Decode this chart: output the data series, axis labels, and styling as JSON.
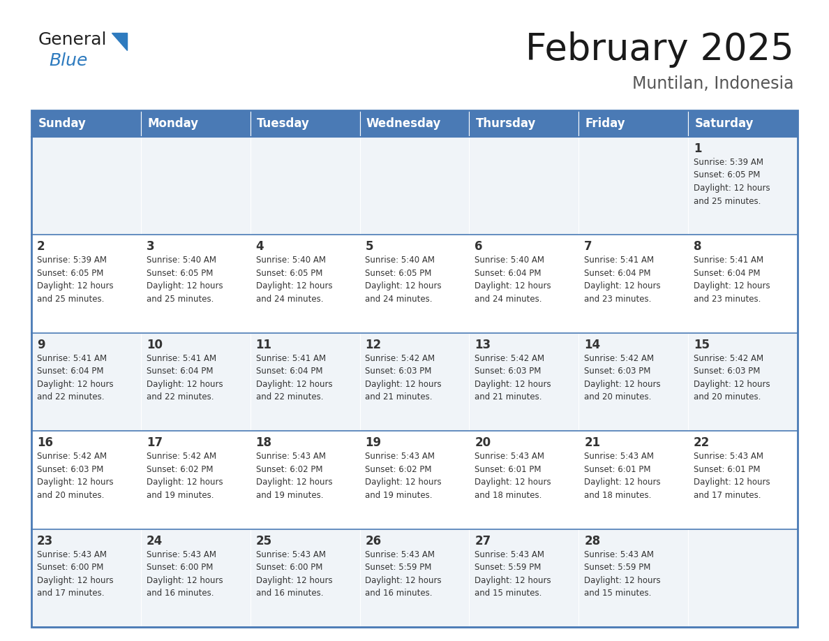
{
  "title": "February 2025",
  "subtitle": "Muntilan, Indonesia",
  "header_bg": "#4a7ab5",
  "header_text_color": "#ffffff",
  "days_of_week": [
    "Sunday",
    "Monday",
    "Tuesday",
    "Wednesday",
    "Thursday",
    "Friday",
    "Saturday"
  ],
  "row_bg_light": "#f0f4f8",
  "row_bg_white": "#ffffff",
  "cell_border_color": "#4a7ab5",
  "day_number_color": "#333333",
  "info_text_color": "#333333",
  "calendar": [
    [
      null,
      null,
      null,
      null,
      null,
      null,
      {
        "day": 1,
        "sunrise": "5:39 AM",
        "sunset": "6:05 PM",
        "daylight": "12 hours\nand 25 minutes."
      }
    ],
    [
      {
        "day": 2,
        "sunrise": "5:39 AM",
        "sunset": "6:05 PM",
        "daylight": "12 hours\nand 25 minutes."
      },
      {
        "day": 3,
        "sunrise": "5:40 AM",
        "sunset": "6:05 PM",
        "daylight": "12 hours\nand 25 minutes."
      },
      {
        "day": 4,
        "sunrise": "5:40 AM",
        "sunset": "6:05 PM",
        "daylight": "12 hours\nand 24 minutes."
      },
      {
        "day": 5,
        "sunrise": "5:40 AM",
        "sunset": "6:05 PM",
        "daylight": "12 hours\nand 24 minutes."
      },
      {
        "day": 6,
        "sunrise": "5:40 AM",
        "sunset": "6:04 PM",
        "daylight": "12 hours\nand 24 minutes."
      },
      {
        "day": 7,
        "sunrise": "5:41 AM",
        "sunset": "6:04 PM",
        "daylight": "12 hours\nand 23 minutes."
      },
      {
        "day": 8,
        "sunrise": "5:41 AM",
        "sunset": "6:04 PM",
        "daylight": "12 hours\nand 23 minutes."
      }
    ],
    [
      {
        "day": 9,
        "sunrise": "5:41 AM",
        "sunset": "6:04 PM",
        "daylight": "12 hours\nand 22 minutes."
      },
      {
        "day": 10,
        "sunrise": "5:41 AM",
        "sunset": "6:04 PM",
        "daylight": "12 hours\nand 22 minutes."
      },
      {
        "day": 11,
        "sunrise": "5:41 AM",
        "sunset": "6:04 PM",
        "daylight": "12 hours\nand 22 minutes."
      },
      {
        "day": 12,
        "sunrise": "5:42 AM",
        "sunset": "6:03 PM",
        "daylight": "12 hours\nand 21 minutes."
      },
      {
        "day": 13,
        "sunrise": "5:42 AM",
        "sunset": "6:03 PM",
        "daylight": "12 hours\nand 21 minutes."
      },
      {
        "day": 14,
        "sunrise": "5:42 AM",
        "sunset": "6:03 PM",
        "daylight": "12 hours\nand 20 minutes."
      },
      {
        "day": 15,
        "sunrise": "5:42 AM",
        "sunset": "6:03 PM",
        "daylight": "12 hours\nand 20 minutes."
      }
    ],
    [
      {
        "day": 16,
        "sunrise": "5:42 AM",
        "sunset": "6:03 PM",
        "daylight": "12 hours\nand 20 minutes."
      },
      {
        "day": 17,
        "sunrise": "5:42 AM",
        "sunset": "6:02 PM",
        "daylight": "12 hours\nand 19 minutes."
      },
      {
        "day": 18,
        "sunrise": "5:43 AM",
        "sunset": "6:02 PM",
        "daylight": "12 hours\nand 19 minutes."
      },
      {
        "day": 19,
        "sunrise": "5:43 AM",
        "sunset": "6:02 PM",
        "daylight": "12 hours\nand 19 minutes."
      },
      {
        "day": 20,
        "sunrise": "5:43 AM",
        "sunset": "6:01 PM",
        "daylight": "12 hours\nand 18 minutes."
      },
      {
        "day": 21,
        "sunrise": "5:43 AM",
        "sunset": "6:01 PM",
        "daylight": "12 hours\nand 18 minutes."
      },
      {
        "day": 22,
        "sunrise": "5:43 AM",
        "sunset": "6:01 PM",
        "daylight": "12 hours\nand 17 minutes."
      }
    ],
    [
      {
        "day": 23,
        "sunrise": "5:43 AM",
        "sunset": "6:00 PM",
        "daylight": "12 hours\nand 17 minutes."
      },
      {
        "day": 24,
        "sunrise": "5:43 AM",
        "sunset": "6:00 PM",
        "daylight": "12 hours\nand 16 minutes."
      },
      {
        "day": 25,
        "sunrise": "5:43 AM",
        "sunset": "6:00 PM",
        "daylight": "12 hours\nand 16 minutes."
      },
      {
        "day": 26,
        "sunrise": "5:43 AM",
        "sunset": "5:59 PM",
        "daylight": "12 hours\nand 16 minutes."
      },
      {
        "day": 27,
        "sunrise": "5:43 AM",
        "sunset": "5:59 PM",
        "daylight": "12 hours\nand 15 minutes."
      },
      {
        "day": 28,
        "sunrise": "5:43 AM",
        "sunset": "5:59 PM",
        "daylight": "12 hours\nand 15 minutes."
      },
      null
    ]
  ],
  "logo_text1": "General",
  "logo_text2": "Blue",
  "logo_color1": "#222222",
  "logo_color2": "#2e7bbf",
  "title_fontsize": 38,
  "subtitle_fontsize": 17,
  "header_fontsize": 12,
  "day_num_fontsize": 12,
  "info_fontsize": 8.5
}
